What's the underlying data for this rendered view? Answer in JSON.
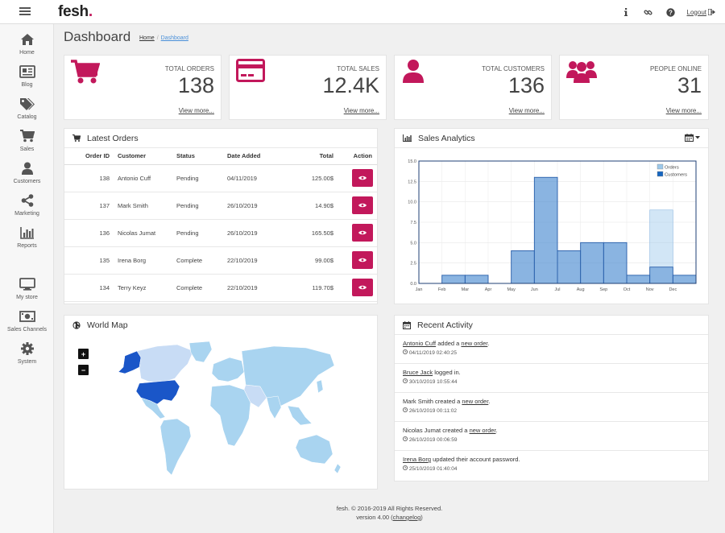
{
  "app": {
    "logo": "fesh",
    "logo_dot": "."
  },
  "topbar": {
    "icons": [
      "info-icon",
      "link-icon",
      "help-icon"
    ],
    "logout_label": "Logout"
  },
  "sidebar": {
    "items": [
      {
        "label": "Home",
        "icon": "home-icon"
      },
      {
        "label": "Blog",
        "icon": "newspaper-icon"
      },
      {
        "label": "Catalog",
        "icon": "tags-icon"
      },
      {
        "label": "Sales",
        "icon": "cart-icon"
      },
      {
        "label": "Customers",
        "icon": "user-icon"
      },
      {
        "label": "Marketing",
        "icon": "share-icon"
      },
      {
        "label": "Reports",
        "icon": "bar-chart-icon"
      },
      {
        "label": "My store",
        "icon": "desktop-icon"
      },
      {
        "label": "Sales Channels",
        "icon": "money-icon"
      },
      {
        "label": "System",
        "icon": "gear-icon"
      }
    ]
  },
  "page": {
    "title": "Dashboard",
    "breadcrumb": [
      "Home",
      "Dashboard"
    ],
    "breadcrumb_sep": "/"
  },
  "stats": [
    {
      "label": "TOTAL ORDERS",
      "value": "138",
      "link": "View more..."
    },
    {
      "label": "TOTAL SALES",
      "value": "12.4K",
      "link": "View more..."
    },
    {
      "label": "TOTAL CUSTOMERS",
      "value": "136",
      "link": "View more..."
    },
    {
      "label": "PEOPLE ONLINE",
      "value": "31",
      "link": "View more..."
    }
  ],
  "latest_orders": {
    "title": "Latest Orders",
    "columns": [
      "Order ID",
      "Customer",
      "Status",
      "Date Added",
      "Total",
      "Action"
    ],
    "rows": [
      {
        "id": "138",
        "customer": "Antonio Cuff",
        "status": "Pending",
        "date": "04/11/2019",
        "total": "125.00$"
      },
      {
        "id": "137",
        "customer": "Mark Smith",
        "status": "Pending",
        "date": "26/10/2019",
        "total": "14.90$"
      },
      {
        "id": "136",
        "customer": "Nicolas Jumat",
        "status": "Pending",
        "date": "26/10/2019",
        "total": "165.50$"
      },
      {
        "id": "135",
        "customer": "Irena Borg",
        "status": "Complete",
        "date": "22/10/2019",
        "total": "99.00$"
      },
      {
        "id": "134",
        "customer": "Terry Keyz",
        "status": "Complete",
        "date": "22/10/2019",
        "total": "119.70$"
      }
    ]
  },
  "sales_analytics": {
    "title": "Sales Analytics"
  },
  "chart_data": {
    "type": "bar",
    "categories": [
      "Jan",
      "Feb",
      "Mar",
      "Apr",
      "May",
      "Jun",
      "Jul",
      "Aug",
      "Sep",
      "Oct",
      "Nov",
      "Dec"
    ],
    "series": [
      {
        "name": "Orders",
        "values": [
          0,
          1,
          1,
          0,
          4,
          13,
          4,
          5,
          5,
          1,
          9,
          1
        ],
        "color": "#9cc8ea"
      },
      {
        "name": "Customers",
        "values": [
          0,
          1,
          1,
          0,
          4,
          13,
          4,
          5,
          5,
          1,
          2,
          1
        ],
        "color": "#1565c0"
      }
    ],
    "ylim": [
      0,
      15
    ],
    "yticks": [
      "0.0",
      "2.5",
      "5.0",
      "7.5",
      "10.0",
      "12.5",
      "15.0"
    ],
    "legend": "top-right"
  },
  "world_map": {
    "title": "World Map",
    "zoom_in": "+",
    "zoom_out": "−"
  },
  "recent_activity": {
    "title": "Recent Activity",
    "items": [
      {
        "actor": "Antonio Cuff",
        "actor_link": true,
        "text": " added a ",
        "object": "new order",
        "end": ".",
        "time": "04/11/2019 02:40:25"
      },
      {
        "actor": "Bruce Jack",
        "actor_link": true,
        "text": " logged in.",
        "object": "",
        "end": "",
        "time": "30/10/2019 10:55:44"
      },
      {
        "actor": "Mark Smith",
        "actor_link": false,
        "text": " created a ",
        "object": "new order",
        "end": ".",
        "time": "26/10/2019 00:11:02"
      },
      {
        "actor": "Nicolas Jumat",
        "actor_link": false,
        "text": " created a ",
        "object": "new order",
        "end": ".",
        "time": "26/10/2019 00:06:59"
      },
      {
        "actor": "Irena Borg",
        "actor_link": true,
        "text": " updated their account password.",
        "object": "",
        "end": "",
        "time": "25/10/2019 01:40:04"
      }
    ]
  },
  "footer": {
    "line1": "fesh. © 2016-2019 All Rights Reserved.",
    "line2_prefix": "version 4.00 (",
    "line2_link": "changelog",
    "line2_suffix": ")"
  },
  "colors": {
    "accent": "#c2185b",
    "chart_light": "#9cc8ea",
    "chart_dark": "#1565c0"
  }
}
